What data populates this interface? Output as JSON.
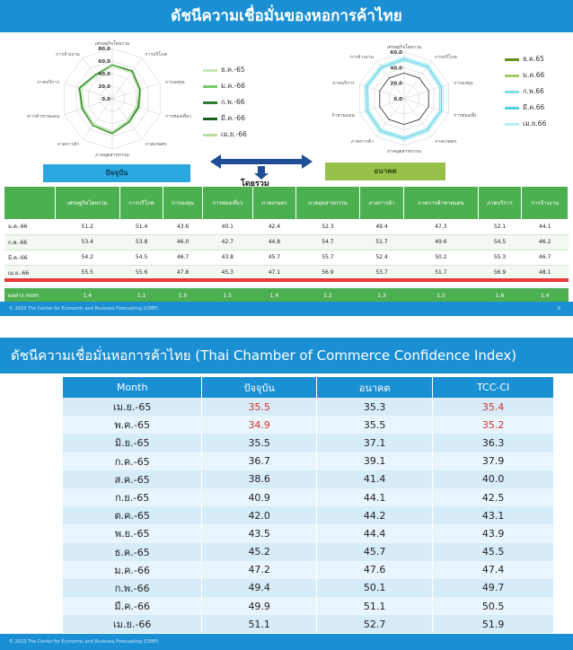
{
  "slide1": {
    "title": "ดัชนีความเชื่อมั่นของหอการค้าไทย",
    "radar_current": {
      "axes": [
        "เศรษฐกิจโดยรวม",
        "การบริโภค",
        "การลงทุน",
        "การท่องเที่ยว",
        "ภาคเกษตร",
        "ภาคอุตสาหกรรม",
        "ภาคการค้า",
        "ภาคการค้าชายแดน",
        "ภาคบริการ",
        "การจ้างงาน"
      ],
      "rings": [
        "80.0",
        "60.0",
        "40.0",
        "20.0",
        "0.0"
      ]
    },
    "radar_future": {
      "axes": [
        "เศรษฐกิจโดยรวม",
        "การบริโภค",
        "การลงทุน",
        "การท่องเที่ยว",
        "ภาคเกษตร",
        "ภาคอุตสาหกรรม",
        "ภาคการค้า",
        "ภาคการค้าชายแดน",
        "ภาคบริการ",
        "การจ้างงาน"
      ],
      "rings": [
        "60.0",
        "40.0",
        "20.0",
        "0.0"
      ]
    },
    "legend_current": [
      {
        "label": "ธ.ค.-65",
        "color": "#c6e6b3"
      },
      {
        "label": "ม.ค.-66",
        "color": "#7bc86a"
      },
      {
        "label": "ก.พ.-66",
        "color": "#2e7d32"
      },
      {
        "label": "มี.ค.-66",
        "color": "#1b5e20"
      },
      {
        "label": "เม.ย.-66",
        "color": "#b8e0a6"
      }
    ],
    "legend_future": [
      {
        "label": "ธ.ค.65",
        "color": "#6b8e23"
      },
      {
        "label": "ม.ค.66",
        "color": "#9ccc65"
      },
      {
        "label": "ก.พ.66",
        "color": "#80deea"
      },
      {
        "label": "มี.ค.66",
        "color": "#4dd0e1"
      },
      {
        "label": "เม.ย.66",
        "color": "#b2ebf2"
      }
    ],
    "label_now": "ปัจจุบัน",
    "label_future": "อนาคต",
    "label_overall": "โดยรวม",
    "table": {
      "headers": [
        "",
        "เศรษฐกิจโดยรวม",
        "การบริโภค",
        "การลงทุน",
        "การท่องเที่ยว",
        "ภาคเกษตร",
        "ภาคอุตสาหกรรม",
        "ภาคการค้า",
        "ภาคการค้าชายแดน",
        "ภาคบริการ",
        "การจ้างงาน"
      ],
      "rows": [
        [
          "ม.ค.-66",
          "51.2",
          "51.4",
          "43.6",
          "40.1",
          "42.4",
          "52.3",
          "49.4",
          "47.3",
          "52.1",
          "44.1"
        ],
        [
          "ก.พ.-66",
          "53.4",
          "53.8",
          "46.0",
          "42.7",
          "44.8",
          "54.7",
          "51.7",
          "49.6",
          "54.5",
          "46.2"
        ],
        [
          "มี.ค.-66",
          "54.2",
          "54.5",
          "46.7",
          "43.8",
          "45.7",
          "55.7",
          "52.4",
          "50.2",
          "55.3",
          "46.7"
        ],
        [
          "เม.ย.-66",
          "55.5",
          "55.6",
          "47.8",
          "45.3",
          "47.1",
          "56.9",
          "53.7",
          "51.7",
          "56.9",
          "48.1"
        ]
      ],
      "mom_row": [
        "ผลต่าง mom",
        "1.4",
        "1.1",
        "1.0",
        "1.5",
        "1.4",
        "1.2",
        "1.3",
        "1.5",
        "1.6",
        "1.4"
      ]
    },
    "footer": "© 2023 The Center for Economic and Business Forecasting (CEBF)",
    "page_number": "6"
  },
  "slide2": {
    "title": "ดัชนีความเชื่อมั่นหอการค้าไทย (Thai Chamber of Commerce Confidence Index)",
    "headers": [
      "Month",
      "ปัจจุบัน",
      "อนาคต",
      "TCC-CI"
    ],
    "rows": [
      {
        "month": "เม.ย.-65",
        "current": "35.5",
        "future": "35.3",
        "tcc": "35.4",
        "highlight": true
      },
      {
        "month": "พ.ค.-65",
        "current": "34.9",
        "future": "35.5",
        "tcc": "35.2",
        "highlight": true
      },
      {
        "month": "มิ.ย.-65",
        "current": "35.5",
        "future": "37.1",
        "tcc": "36.3",
        "highlight": false
      },
      {
        "month": "ก.ค.-65",
        "current": "36.7",
        "future": "39.1",
        "tcc": "37.9",
        "highlight": false
      },
      {
        "month": "ส.ค.-65",
        "current": "38.6",
        "future": "41.4",
        "tcc": "40.0",
        "highlight": false
      },
      {
        "month": "ก.ย.-65",
        "current": "40.9",
        "future": "44.1",
        "tcc": "42.5",
        "highlight": false
      },
      {
        "month": "ต.ค.-65",
        "current": "42.0",
        "future": "44.2",
        "tcc": "43.1",
        "highlight": false
      },
      {
        "month": "พ.ย.-65",
        "current": "43.5",
        "future": "44.4",
        "tcc": "43.9",
        "highlight": false
      },
      {
        "month": "ธ.ค.-65",
        "current": "45.2",
        "future": "45.7",
        "tcc": "45.5",
        "highlight": false
      },
      {
        "month": "ม.ค.-66",
        "current": "47.2",
        "future": "47.6",
        "tcc": "47.4",
        "highlight": false
      },
      {
        "month": "ก.พ.-66",
        "current": "49.4",
        "future": "50.1",
        "tcc": "49.7",
        "highlight": false
      },
      {
        "month": "มี.ค.-66",
        "current": "49.9",
        "future": "51.1",
        "tcc": "50.5",
        "highlight": false
      },
      {
        "month": "เม.ย.-66",
        "current": "51.1",
        "future": "52.7",
        "tcc": "51.9",
        "highlight": false
      }
    ],
    "footer": "© 2023 The Center for Economic and Business Forecasting (CEBF)"
  }
}
